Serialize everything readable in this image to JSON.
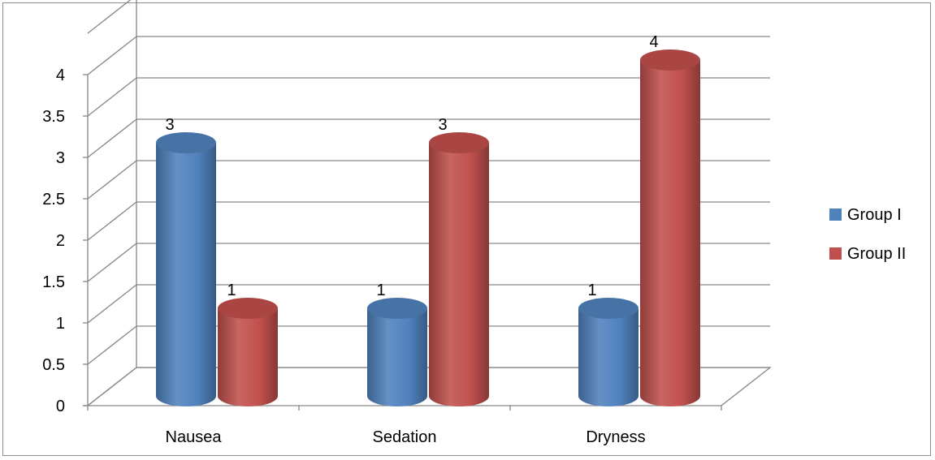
{
  "chart_data": {
    "type": "bar",
    "style": "3d-cylinder",
    "categories": [
      "Nausea",
      "Sedation",
      "Dryness"
    ],
    "series": [
      {
        "name": "Group I",
        "values": [
          3,
          1,
          1
        ],
        "color": "#4f81bd"
      },
      {
        "name": "Group II",
        "values": [
          1,
          3,
          4
        ],
        "color": "#c0504d"
      }
    ],
    "data_labels": true,
    "y_ticks": [
      "0",
      "0.5",
      "1",
      "1.5",
      "2",
      "2.5",
      "3",
      "3.5",
      "4"
    ],
    "ylim": [
      0,
      4.5
    ],
    "grid": true,
    "legend_position": "right"
  }
}
